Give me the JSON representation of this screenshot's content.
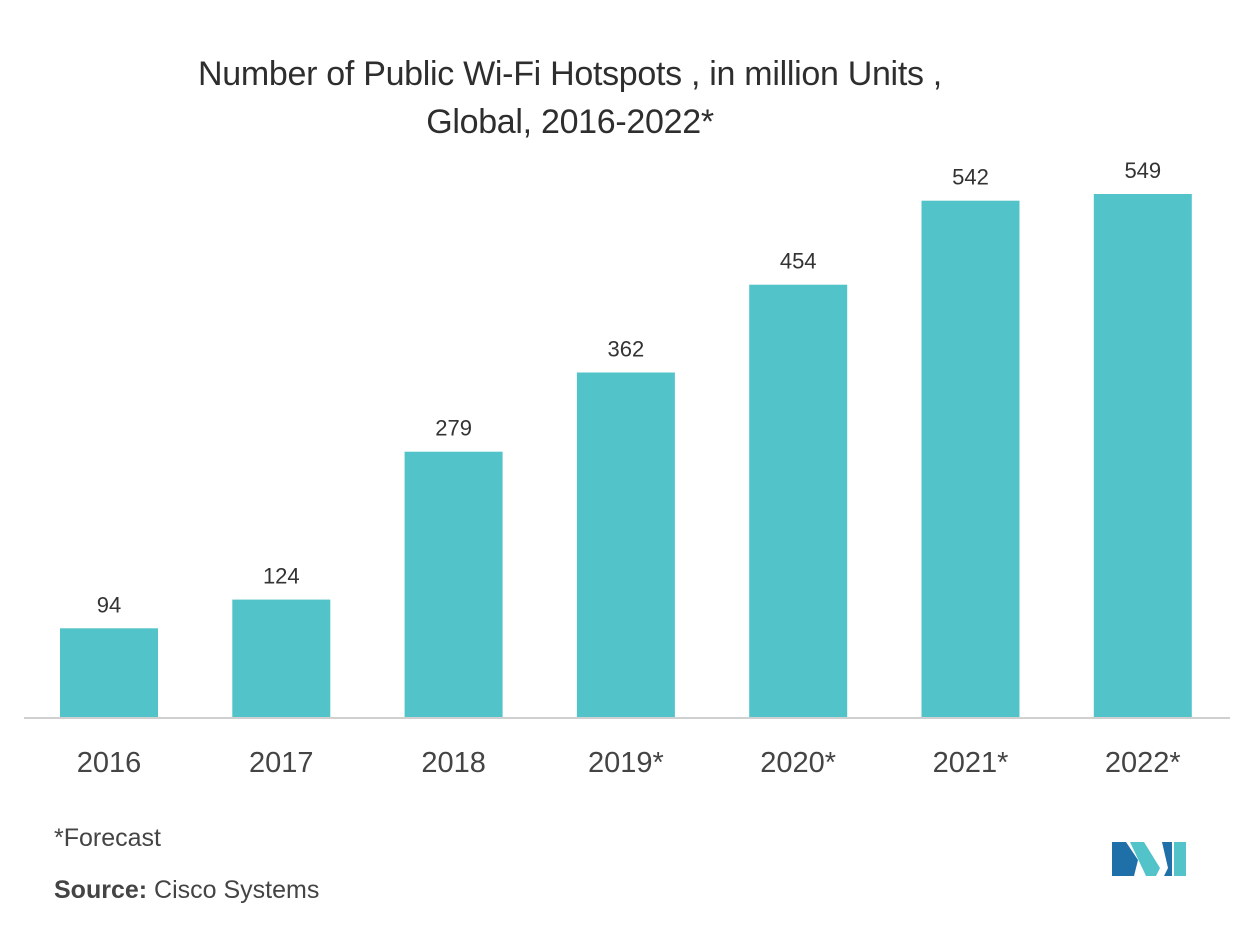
{
  "chart_data": {
    "type": "bar",
    "title_line1": "Number of Public Wi-Fi Hotspots , in million Units ,",
    "title_line2": "Global, 2016-2022*",
    "categories": [
      "2016",
      "2017",
      "2018",
      "2019*",
      "2020*",
      "2021*",
      "2022*"
    ],
    "values": [
      94,
      124,
      279,
      362,
      454,
      542,
      549
    ],
    "xlabel": "",
    "ylabel": "",
    "ylim": [
      0,
      549
    ],
    "grid": false,
    "bar_color": "#52c4c9",
    "axis_color": "#d0d0d0"
  },
  "footnote": "*Forecast",
  "source_label": "Source:",
  "source_value": "Cisco Systems",
  "logo": {
    "icon": "mordor-intelligence-logo-icon",
    "color_dark": "#1f6fa8",
    "color_light": "#52c4c9"
  }
}
